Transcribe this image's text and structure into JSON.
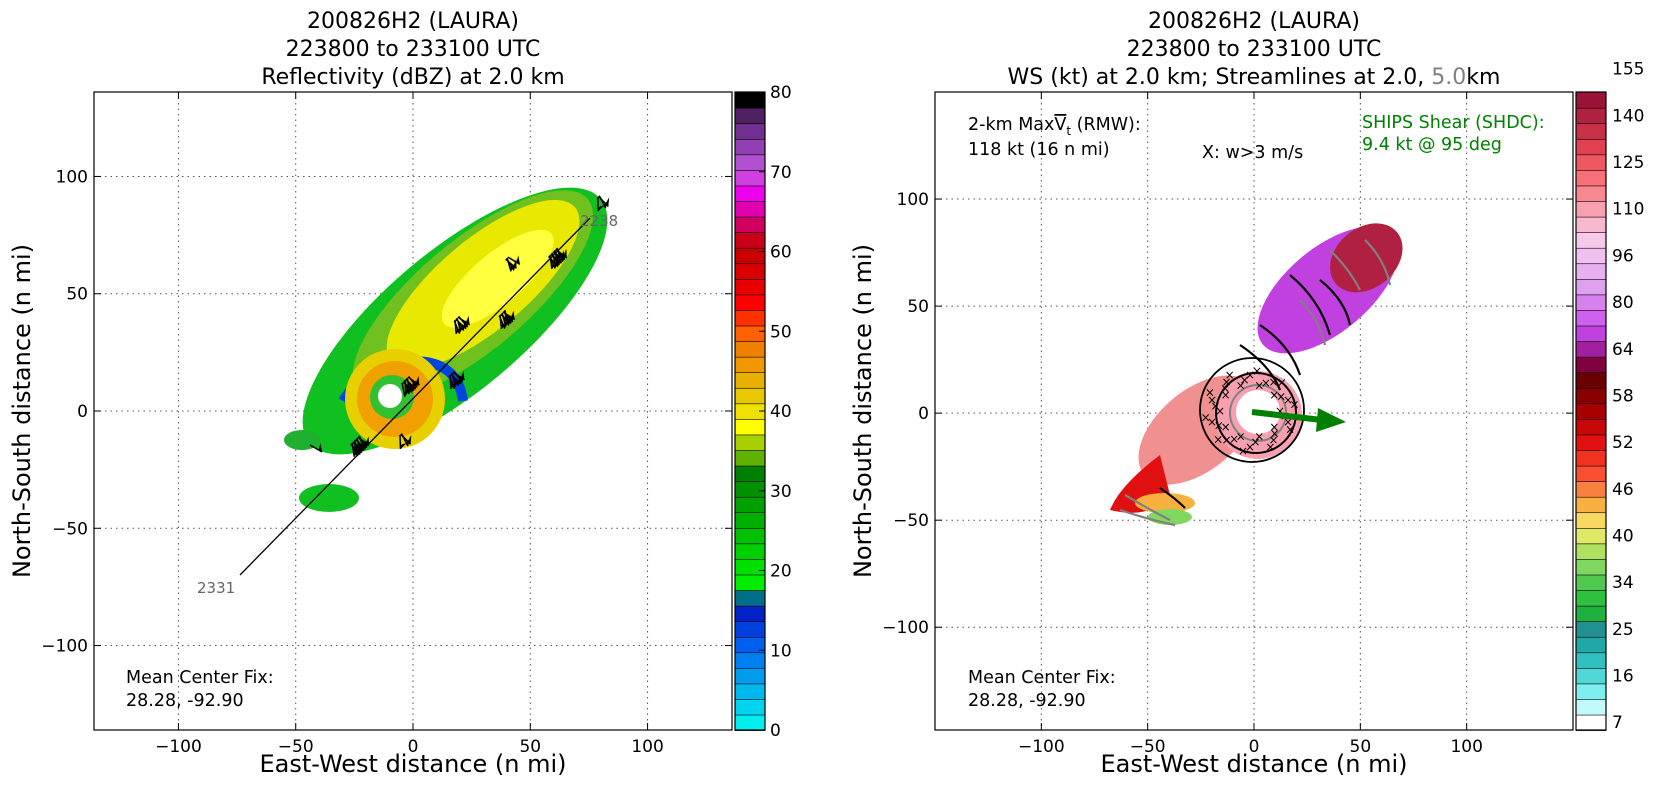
{
  "chart_data": [
    {
      "type": "heatmap",
      "title_lines": [
        "200826H2 (LAURA)",
        "223800 to 233100 UTC",
        "Reflectivity (dBZ) at 2.0 km"
      ],
      "xlabel": "East-West distance (n mi)",
      "ylabel": "North-South distance (n mi)",
      "xlim": [
        -136,
        136
      ],
      "ylim": [
        -136,
        136
      ],
      "xticks": [
        -100,
        -50,
        0,
        50,
        100
      ],
      "yticks": [
        -100,
        -50,
        0,
        50,
        100
      ],
      "xtick_labels": [
        "−100",
        "−50",
        "0",
        "50",
        "100"
      ],
      "ytick_labels": [
        "−100",
        "−50",
        "0",
        "50",
        "100"
      ],
      "grid": true,
      "track_labels": [
        "2238",
        "2331"
      ],
      "annotation_lines": [
        "Mean Center Fix:",
        "28.28, -92.90"
      ],
      "colorbar": {
        "ticks": [
          0,
          10,
          20,
          30,
          40,
          50,
          60,
          70,
          80
        ],
        "tick_labels": [
          "0",
          "10",
          "20",
          "30",
          "40",
          "50",
          "60",
          "70",
          "80"
        ],
        "colors": [
          "#00eeee",
          "#00d4ee",
          "#00b8ee",
          "#009cee",
          "#0080ee",
          "#0060ee",
          "#0040e0",
          "#0020c8",
          "#006e8a",
          "#00ee00",
          "#00e000",
          "#00d000",
          "#00c000",
          "#00b000",
          "#00a000",
          "#009000",
          "#008000",
          "#60b000",
          "#a8d000",
          "#ffff00",
          "#f0e000",
          "#e8c800",
          "#e8b000",
          "#f09800",
          "#f08000",
          "#ff6000",
          "#ff3000",
          "#ff0000",
          "#e80000",
          "#d80000",
          "#c80000",
          "#c80018",
          "#d00060",
          "#e000b0",
          "#ee00ee",
          "#d040e0",
          "#b050d0",
          "#9040b0",
          "#703090",
          "#502060",
          "#000000"
        ]
      }
    },
    {
      "type": "heatmap",
      "title_lines": [
        "200826H2 (LAURA)",
        "223800 to 233100 UTC"
      ],
      "title_line3_parts": [
        "WS (kt) at 2.0 km; Streamlines at 2.0, ",
        "5.0",
        "km"
      ],
      "xlabel": "East-West distance (n mi)",
      "ylabel": "North-South distance (n mi)",
      "xlim": [
        -150,
        150
      ],
      "ylim": [
        -148,
        150
      ],
      "xticks": [
        -100,
        -50,
        0,
        50,
        100
      ],
      "yticks": [
        -100,
        -50,
        0,
        50,
        100
      ],
      "xtick_labels": [
        "−100",
        "−50",
        "0",
        "50",
        "100"
      ],
      "ytick_labels": [
        "−100",
        "−50",
        "0",
        "50",
        "100"
      ],
      "grid": true,
      "annotations": {
        "maxvt_line1_a": "2-km Max",
        "maxvt_symbol": "V",
        "maxvt_sub": "t",
        "maxvt_line1_b": " (RMW):",
        "maxvt_line2": "118 kt (16 n mi)",
        "w_marker": "X: w>3 m/s",
        "shear_line1": "SHIPS Shear (SHDC):",
        "shear_line2": "9.4 kt @ 95 deg",
        "center_fix_lines": [
          "Mean Center Fix:",
          "28.28, -92.90"
        ]
      },
      "shear_vector": {
        "speed_kt": 9.4,
        "direction_deg": 95
      },
      "colors": {
        "shear": "#008000",
        "streamline_5km": "#808080",
        "streamline_2km": "#000000"
      },
      "colorbar": {
        "tick_labels": [
          "7",
          "16",
          "25",
          "34",
          "40",
          "46",
          "52",
          "58",
          "64",
          "80",
          "96",
          "110",
          "125",
          "140",
          "155"
        ],
        "colors": [
          "#ffffff",
          "#c0fafa",
          "#80eeee",
          "#50d8d8",
          "#30c0c0",
          "#20a8a8",
          "#209090",
          "#20b040",
          "#30c040",
          "#50c850",
          "#80d860",
          "#b0e060",
          "#e0e868",
          "#f8d860",
          "#f8b040",
          "#f88040",
          "#f85030",
          "#f03020",
          "#e01010",
          "#c80808",
          "#a80000",
          "#880000",
          "#6a0000",
          "#800040",
          "#a020a0",
          "#c040e0",
          "#d060ee",
          "#d880ee",
          "#e0a0f0",
          "#e8b0f0",
          "#f0c0f0",
          "#f8c8e8",
          "#f8b8d0",
          "#f8a0b0",
          "#f88890",
          "#f87078",
          "#f05860",
          "#e04050",
          "#c83048",
          "#b02040",
          "#9a1438"
        ]
      }
    }
  ]
}
